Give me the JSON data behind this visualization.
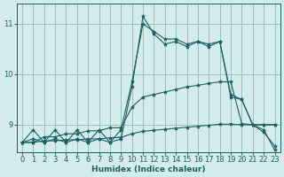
{
  "xlabel": "Humidex (Indice chaleur)",
  "bg_color": "#d4ecec",
  "grid_color": "#9bbebe",
  "line_color": "#1a6060",
  "xlim": [
    -0.5,
    23.5
  ],
  "ylim": [
    8.45,
    11.4
  ],
  "yticks": [
    9,
    10,
    11
  ],
  "xticks": [
    0,
    1,
    2,
    3,
    4,
    5,
    6,
    7,
    8,
    9,
    10,
    11,
    12,
    13,
    14,
    15,
    16,
    17,
    18,
    19,
    20,
    21,
    22,
    23
  ],
  "series": [
    [
      8.65,
      8.72,
      8.65,
      8.72,
      8.65,
      8.72,
      8.65,
      8.72,
      8.65,
      8.72,
      9.75,
      11.15,
      10.8,
      10.6,
      10.65,
      10.55,
      10.65,
      10.55,
      10.65,
      9.55,
      9.5,
      9.0,
      8.9,
      8.5
    ],
    [
      8.65,
      8.9,
      8.65,
      8.9,
      8.65,
      8.9,
      8.65,
      8.9,
      8.65,
      8.9,
      9.85,
      11.0,
      10.85,
      10.7,
      10.7,
      10.6,
      10.65,
      10.6,
      10.65,
      9.6,
      9.5,
      9.0,
      8.85,
      8.58
    ],
    [
      8.65,
      8.65,
      8.76,
      8.76,
      8.82,
      8.82,
      8.88,
      8.88,
      8.94,
      8.94,
      9.35,
      9.55,
      9.6,
      9.65,
      9.7,
      9.75,
      9.78,
      9.82,
      9.85,
      9.85,
      9.02,
      9.0,
      9.0,
      9.0
    ],
    [
      8.65,
      8.65,
      8.68,
      8.68,
      8.7,
      8.7,
      8.72,
      8.72,
      8.74,
      8.75,
      8.82,
      8.87,
      8.89,
      8.91,
      8.93,
      8.95,
      8.97,
      8.99,
      9.01,
      9.01,
      9.0,
      9.0,
      9.0,
      9.0
    ]
  ]
}
